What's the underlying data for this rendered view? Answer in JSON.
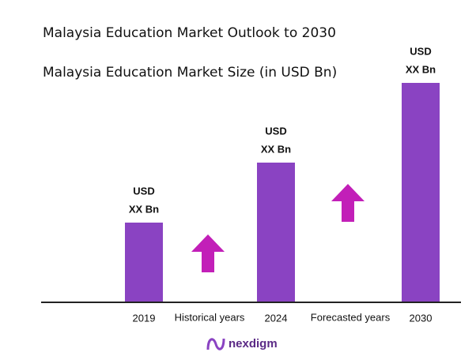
{
  "chart_data": {
    "type": "bar",
    "title": "Malaysia Education Market Outlook to 2030",
    "subtitle": "Malaysia Education Market Size (in USD Bn)",
    "categories": [
      "2019",
      "2024",
      "2030"
    ],
    "values": [
      100,
      176,
      277
    ],
    "value_labels": [
      [
        "USD",
        "XX Bn"
      ],
      [
        "USD",
        "XX Bn"
      ],
      [
        "USD",
        "XX Bn"
      ]
    ],
    "color": "#8a43c2",
    "annotations": [
      "Historical years",
      "Forecasted years"
    ],
    "logo": "nexdigm"
  }
}
